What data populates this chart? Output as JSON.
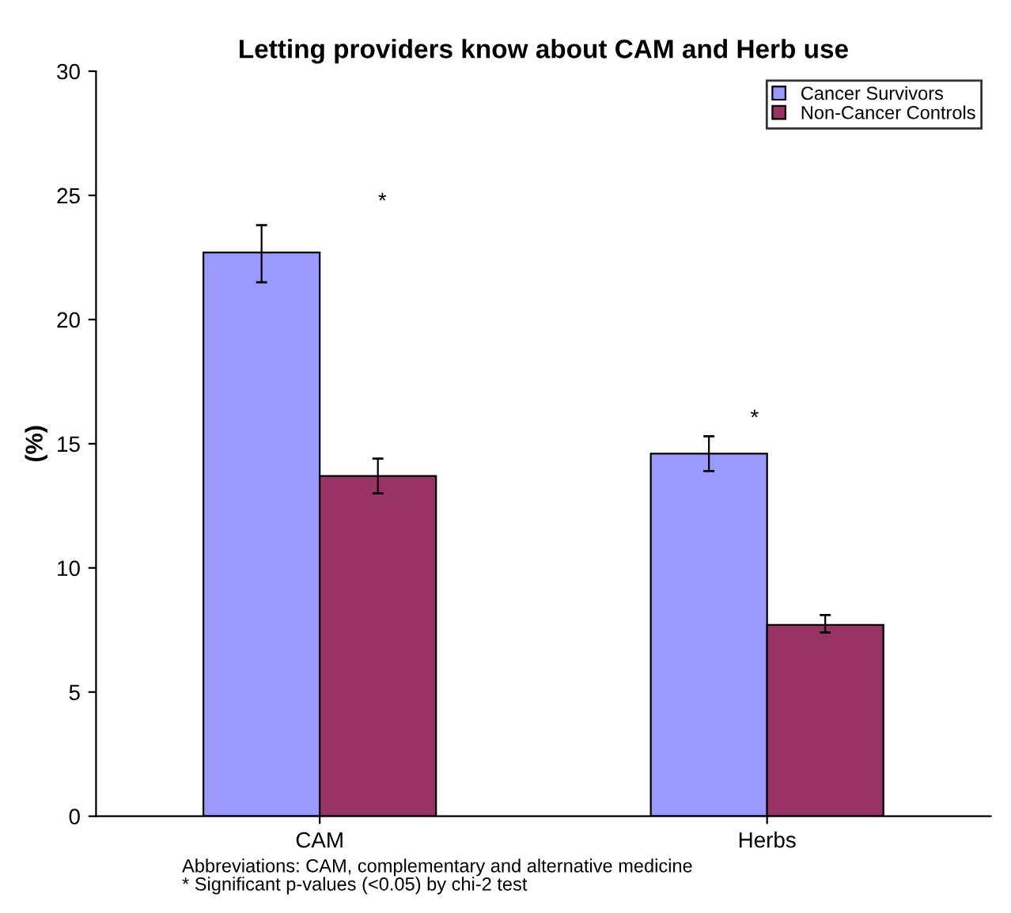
{
  "chart_data": {
    "type": "bar",
    "title": "Letting providers know about CAM and Herb use",
    "ylabel": "(%)",
    "categories": [
      "CAM",
      "Herbs"
    ],
    "series": [
      {
        "name": "Cancer Survivors",
        "color": "#9999ff",
        "values": [
          22.7,
          14.6
        ],
        "errors": [
          [
            21.5,
            23.8
          ],
          [
            13.9,
            15.3
          ]
        ]
      },
      {
        "name": "Non-Cancer Controls",
        "color": "#993366",
        "values": [
          13.7,
          7.7
        ],
        "errors": [
          [
            13.0,
            14.4
          ],
          [
            7.4,
            8.1
          ]
        ]
      }
    ],
    "ylim": [
      0,
      30
    ],
    "yticks": [
      0,
      5,
      10,
      15,
      20,
      25,
      30
    ],
    "grid": false,
    "legend": "top right",
    "annotations": [
      "*",
      "*",
      "Abbreviations: CAM, complementary and alternative medicine",
      "* Significant p-values (<0.05) by chi-2 test"
    ]
  }
}
